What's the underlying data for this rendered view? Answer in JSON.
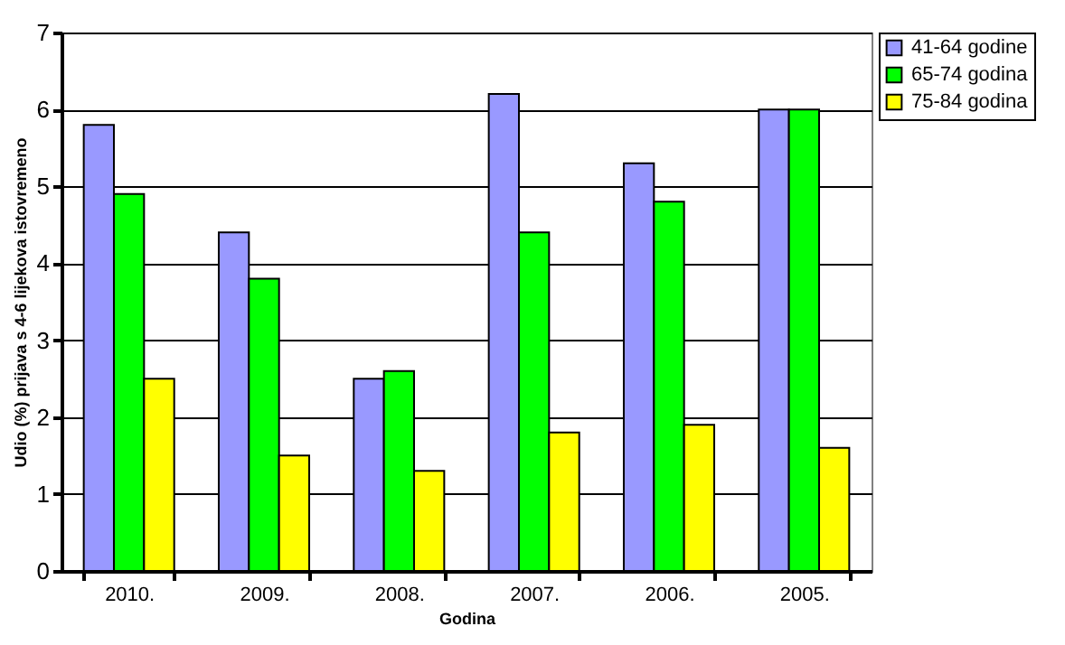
{
  "chart_data": {
    "type": "bar",
    "xlabel": "Godina",
    "ylabel": "Udio (%) prijava s 4-6 lijekova istovremeno",
    "categories": [
      "2010.",
      "2009.",
      "2008.",
      "2007.",
      "2006.",
      "2005."
    ],
    "series": [
      {
        "name": "41-64 godine",
        "color": "#9999ff",
        "values": [
          5.8,
          4.4,
          2.5,
          6.2,
          5.3,
          6.0
        ]
      },
      {
        "name": "65-74 godina",
        "color": "#00ff00",
        "values": [
          4.9,
          3.8,
          2.6,
          4.4,
          4.8,
          6.0
        ]
      },
      {
        "name": "75-84 godina",
        "color": "#ffff00",
        "values": [
          2.5,
          1.5,
          1.3,
          1.8,
          1.9,
          1.6
        ]
      }
    ],
    "ylim": [
      0,
      7
    ],
    "yticks": [
      0,
      1,
      2,
      3,
      4,
      5,
      6,
      7
    ],
    "grid": "y",
    "legend": "right"
  }
}
